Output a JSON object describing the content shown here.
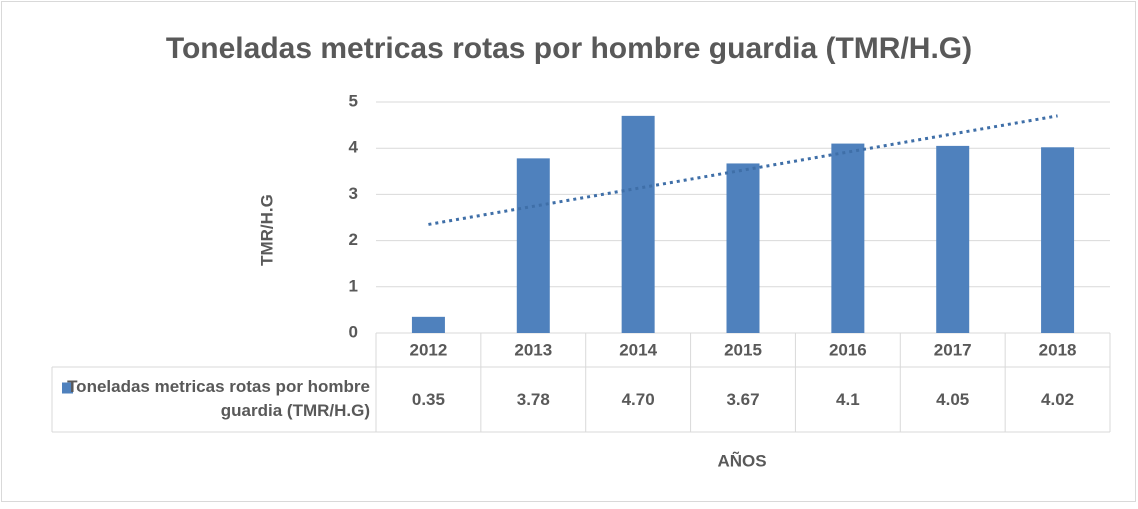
{
  "chart_data": {
    "type": "bar",
    "title": "Toneladas metricas rotas por hombre guardia (TMR/H.G)",
    "y_label": "TMR/H.G",
    "x_label": "AÑOS",
    "categories": [
      "2012",
      "2013",
      "2014",
      "2015",
      "2016",
      "2017",
      "2018"
    ],
    "series": [
      {
        "name": "Toneladas metricas rotas por hombre guardia (TMR/H.G)",
        "color": "#4f81bd",
        "values": [
          0.35,
          3.78,
          4.7,
          3.67,
          4.1,
          4.05,
          4.02
        ],
        "value_labels": [
          "0.35",
          "3.78",
          "4.70",
          "3.67",
          "4.1",
          "4.05",
          "4.02"
        ]
      }
    ],
    "trendline": {
      "color": "#3f6fa8",
      "values": [
        2.35,
        4.7
      ]
    },
    "ylim": [
      0,
      5
    ],
    "yticks": [
      0,
      1,
      2,
      3,
      4,
      5
    ],
    "grid": true,
    "data_table": true
  }
}
